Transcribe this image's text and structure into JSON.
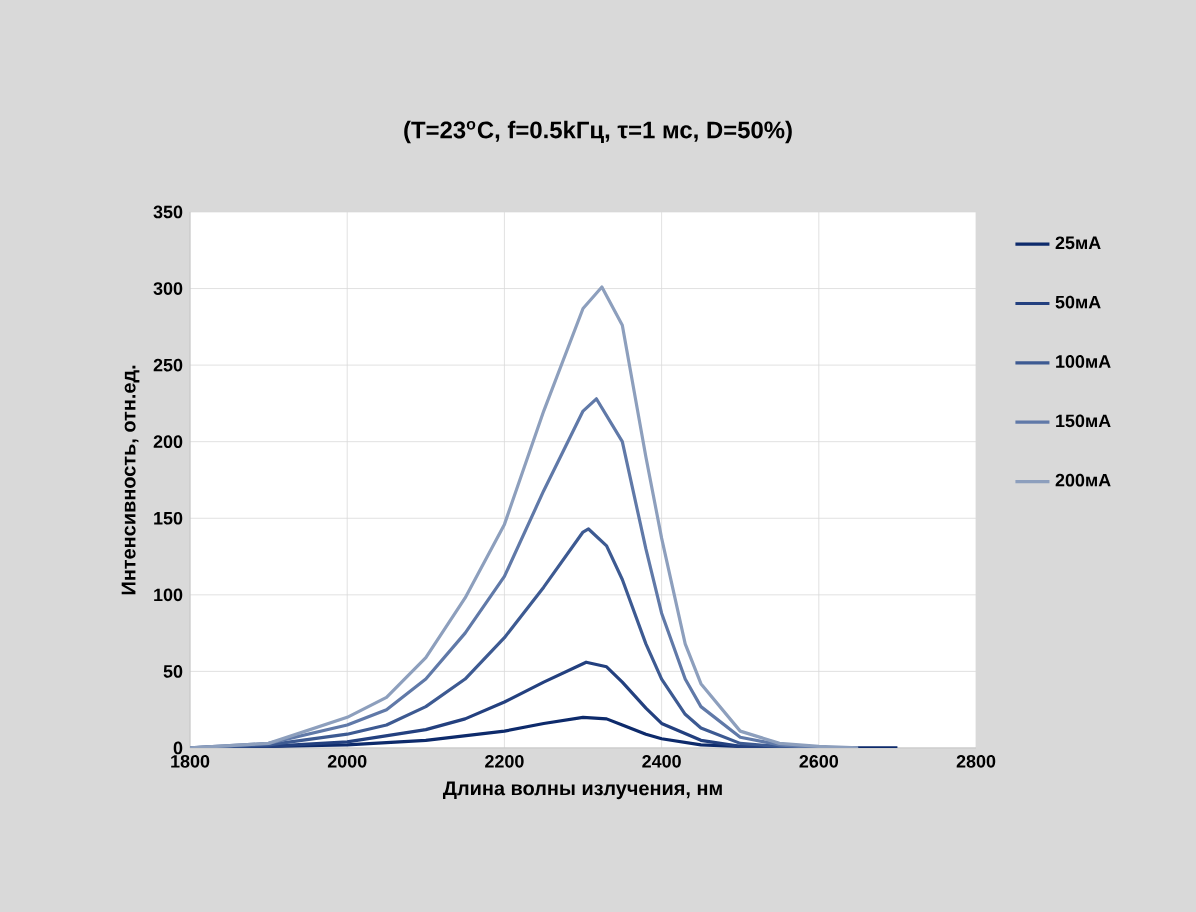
{
  "chart_data": {
    "type": "line",
    "title": "(T=23$^{o}$C, f=0.5kГц, τ=1 мс, D=50%)",
    "xlabel": "Длина волны излучения, нм",
    "ylabel": "Интенсивность, отн.ед.",
    "xlim": [
      1800,
      2800
    ],
    "xticks": [
      1800,
      2000,
      2200,
      2400,
      2600,
      2800
    ],
    "ylim": [
      0,
      350
    ],
    "yticks": [
      0,
      50,
      100,
      150,
      200,
      250,
      300,
      350
    ],
    "grid": true,
    "legend": "right",
    "marker": "none",
    "line_style": "solid",
    "series": [
      {
        "name": "25мА",
        "color": "#0d2a6b",
        "x": [
          1800,
          1900,
          2000,
          2100,
          2200,
          2250,
          2300,
          2330,
          2350,
          2380,
          2400,
          2450,
          2500,
          2600,
          2700
        ],
        "values": [
          0,
          1,
          2,
          5,
          11,
          16,
          20,
          19,
          15,
          9,
          6,
          2,
          1,
          0,
          0
        ]
      },
      {
        "name": "50мА",
        "color": "#23407f",
        "x": [
          1800,
          1900,
          2000,
          2100,
          2150,
          2200,
          2250,
          2304,
          2330,
          2350,
          2380,
          2400,
          2450,
          2500,
          2600,
          2650
        ],
        "values": [
          0,
          1,
          4,
          12,
          19,
          30,
          43,
          56,
          53,
          43,
          26,
          16,
          5,
          1,
          0,
          0
        ]
      },
      {
        "name": "100мА",
        "color": "#3d5a92",
        "x": [
          1800,
          1900,
          2000,
          2050,
          2100,
          2150,
          2200,
          2250,
          2300,
          2307,
          2330,
          2350,
          2380,
          2400,
          2430,
          2450,
          2500,
          2550,
          2600,
          2650
        ],
        "values": [
          0,
          2,
          9,
          15,
          27,
          45,
          72,
          105,
          141,
          143,
          132,
          110,
          68,
          45,
          22,
          13,
          3,
          1,
          0,
          0
        ]
      },
      {
        "name": "150мА",
        "color": "#6079a8",
        "x": [
          1800,
          1900,
          2000,
          2050,
          2100,
          2150,
          2200,
          2250,
          2300,
          2317,
          2350,
          2380,
          2400,
          2430,
          2450,
          2500,
          2550,
          2600,
          2650
        ],
        "values": [
          0,
          3,
          15,
          25,
          45,
          75,
          112,
          168,
          220,
          228,
          200,
          130,
          88,
          45,
          27,
          7,
          2,
          0,
          0
        ]
      },
      {
        "name": "200мА",
        "color": "#8d9fbd",
        "x": [
          1800,
          1900,
          2000,
          2050,
          2100,
          2150,
          2200,
          2250,
          2300,
          2324,
          2350,
          2380,
          2400,
          2430,
          2450,
          2500,
          2550,
          2600,
          2650
        ],
        "values": [
          0,
          3,
          20,
          33,
          59,
          98,
          146,
          220,
          287,
          301,
          276,
          190,
          137,
          68,
          42,
          11,
          3,
          1,
          0
        ]
      }
    ]
  }
}
